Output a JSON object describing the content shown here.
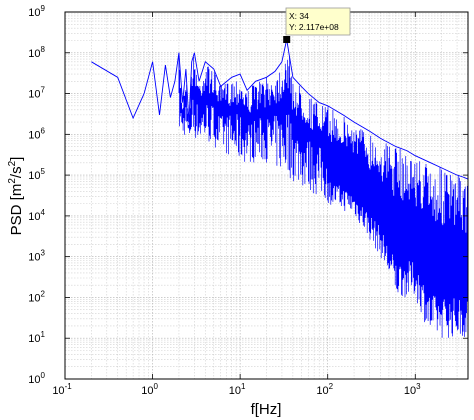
{
  "chart_data": {
    "type": "line",
    "title": "",
    "xlabel": "f[Hz]",
    "ylabel": "PSD [m2/s2]",
    "ylabel_parts": {
      "base": "PSD [m",
      "sup1": "2",
      "mid": "/s",
      "sup2": "2",
      "end": "]"
    },
    "xscale": "log",
    "yscale": "log",
    "xlim": [
      0.1,
      4000
    ],
    "ylim": [
      1,
      1000000000
    ],
    "grid": true,
    "x_ticks": [
      {
        "value": 0.1,
        "base": "10",
        "exp": "-1"
      },
      {
        "value": 1,
        "base": "10",
        "exp": "0"
      },
      {
        "value": 10,
        "base": "10",
        "exp": "1"
      },
      {
        "value": 100,
        "base": "10",
        "exp": "2"
      },
      {
        "value": 1000,
        "base": "10",
        "exp": "3"
      }
    ],
    "y_ticks": [
      {
        "value": 1,
        "base": "10",
        "exp": "0"
      },
      {
        "value": 10,
        "base": "10",
        "exp": "1"
      },
      {
        "value": 100,
        "base": "10",
        "exp": "2"
      },
      {
        "value": 1000,
        "base": "10",
        "exp": "3"
      },
      {
        "value": 10000,
        "base": "10",
        "exp": "4"
      },
      {
        "value": 100000,
        "base": "10",
        "exp": "5"
      },
      {
        "value": 1000000,
        "base": "10",
        "exp": "6"
      },
      {
        "value": 10000000,
        "base": "10",
        "exp": "7"
      },
      {
        "value": 100000000,
        "base": "10",
        "exp": "8"
      },
      {
        "value": 1000000000,
        "base": "10",
        "exp": "9"
      }
    ],
    "series": [
      {
        "color": "#0000ff",
        "x": [
          0.2,
          0.4,
          0.6,
          0.8,
          1.0,
          1.2,
          1.4,
          1.6,
          1.8,
          2.0,
          2.2,
          2.4,
          2.6,
          2.8,
          3.0,
          3.4,
          4.0,
          5.0,
          6.0,
          8.0,
          10,
          12,
          15,
          20,
          25,
          30,
          34,
          40,
          50,
          60,
          80,
          100,
          150,
          200,
          300,
          400,
          600,
          800,
          1000,
          1500,
          2000,
          2500,
          3000,
          3500,
          4000
        ],
        "y": [
          60000000,
          25000000,
          2500000,
          10000000,
          60000000,
          3000000,
          50000000,
          8000000,
          20000000,
          100000000,
          6000000,
          40000000,
          2000000,
          60000000,
          100000000,
          20000000,
          60000000,
          40000000,
          15000000,
          25000000,
          30000000,
          12000000,
          20000000,
          25000000,
          35000000,
          60000000,
          211700000,
          25000000,
          15000000,
          10000000,
          6000000,
          5000000,
          3000000,
          2000000,
          1200000,
          800000,
          500000,
          400000,
          300000,
          200000,
          150000,
          120000,
          100000,
          90000,
          80000
        ],
        "lower_envelope": {
          "x": [
            2,
            5,
            10,
            20,
            50,
            100,
            200,
            400,
            600,
            1000,
            1500,
            2000,
            4000
          ],
          "y": [
            1000000,
            500000,
            200000,
            200000,
            50000,
            20000,
            10000,
            1000,
            100,
            100,
            10,
            10,
            10
          ]
        }
      }
    ],
    "datatip": {
      "x_label": "X: 34",
      "y_label": "Y: 2.117e+08",
      "x": 34,
      "y": 211700000
    }
  }
}
